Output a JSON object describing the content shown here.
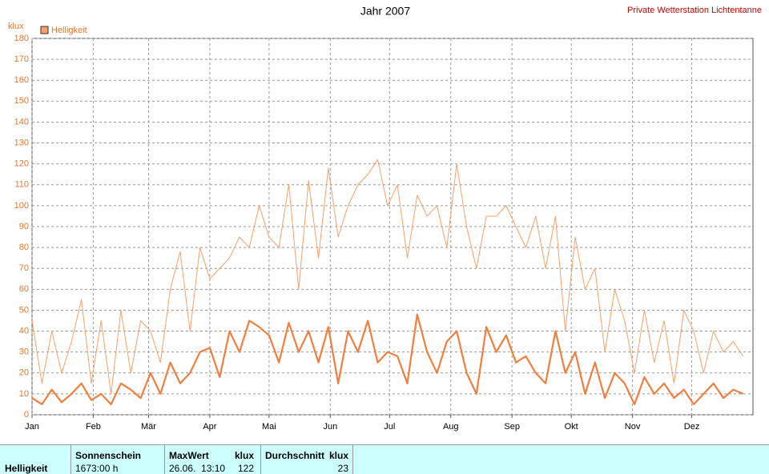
{
  "chart_data": {
    "type": "line",
    "title": "Jahr 2007",
    "subtitle": "Private Wetterstation Lichtentanne",
    "y_label": "klux",
    "legend": "top-left",
    "grid": true,
    "x": [
      0,
      5,
      10,
      15,
      20,
      25,
      30,
      35,
      40,
      45,
      50,
      55,
      60,
      65,
      70,
      75,
      80,
      85,
      90,
      95,
      100,
      105,
      110,
      115,
      120,
      125,
      130,
      135,
      140,
      145,
      150,
      155,
      160,
      165,
      170,
      175,
      180,
      185,
      190,
      195,
      200,
      205,
      210,
      215,
      220,
      225,
      230,
      235,
      240,
      245,
      250,
      255,
      260,
      265,
      270,
      275,
      280,
      285,
      290,
      295,
      300,
      305,
      310,
      315,
      320,
      325,
      330,
      335,
      340,
      345,
      350,
      355,
      360
    ],
    "series": [
      {
        "name": "Helligkeit",
        "color": "#f4a06a",
        "width": 1,
        "values": [
          45,
          15,
          40,
          20,
          35,
          55,
          15,
          45,
          10,
          50,
          20,
          45,
          40,
          25,
          60,
          78,
          40,
          80,
          65,
          70,
          75,
          85,
          80,
          100,
          85,
          80,
          110,
          60,
          112,
          75,
          118,
          85,
          100,
          110,
          115,
          122,
          100,
          110,
          75,
          105,
          95,
          100,
          80,
          120,
          90,
          70,
          95,
          95,
          100,
          90,
          80,
          95,
          70,
          95,
          40,
          85,
          60,
          70,
          30,
          60,
          45,
          20,
          50,
          25,
          45,
          15,
          50,
          40,
          20,
          40,
          30,
          35,
          28
        ]
      },
      {
        "color": "#f07e3e",
        "width": 2.2,
        "values": [
          8,
          5,
          12,
          6,
          10,
          15,
          7,
          10,
          5,
          15,
          12,
          8,
          20,
          10,
          25,
          15,
          20,
          30,
          32,
          18,
          40,
          30,
          45,
          42,
          38,
          25,
          44,
          30,
          40,
          25,
          42,
          15,
          40,
          30,
          45,
          25,
          30,
          28,
          15,
          48,
          30,
          20,
          35,
          40,
          20,
          10,
          42,
          30,
          38,
          25,
          28,
          20,
          15,
          40,
          20,
          30,
          10,
          25,
          8,
          20,
          15,
          5,
          18,
          10,
          15,
          8,
          12,
          5,
          10,
          15,
          8,
          12,
          10
        ]
      }
    ],
    "xlim": [
      0,
      365
    ],
    "xticks": [
      {
        "value": 0,
        "label": "Jan"
      },
      {
        "value": 31,
        "label": "Feb"
      },
      {
        "value": 59,
        "label": "Mär"
      },
      {
        "value": 90,
        "label": "Apr"
      },
      {
        "value": 120,
        "label": "Mai"
      },
      {
        "value": 151,
        "label": "Jun"
      },
      {
        "value": 181,
        "label": "Jul"
      },
      {
        "value": 212,
        "label": "Aug"
      },
      {
        "value": 243,
        "label": "Sep"
      },
      {
        "value": 273,
        "label": "Okt"
      },
      {
        "value": 304,
        "label": "Nov"
      },
      {
        "value": 334,
        "label": "Dez"
      }
    ],
    "ylim": [
      0,
      180
    ],
    "yticks": [
      0,
      10,
      20,
      30,
      40,
      50,
      60,
      70,
      80,
      90,
      100,
      110,
      120,
      130,
      140,
      150,
      160,
      170,
      180
    ]
  },
  "table": {
    "header": [
      "Sonnenschein",
      "MaxWert",
      "klux",
      "Durchschnitt",
      "klux"
    ],
    "row": {
      "label": "Helligkeit",
      "cells": [
        "1673:00 h",
        "26.06.  13:10",
        "122",
        "23"
      ]
    }
  }
}
